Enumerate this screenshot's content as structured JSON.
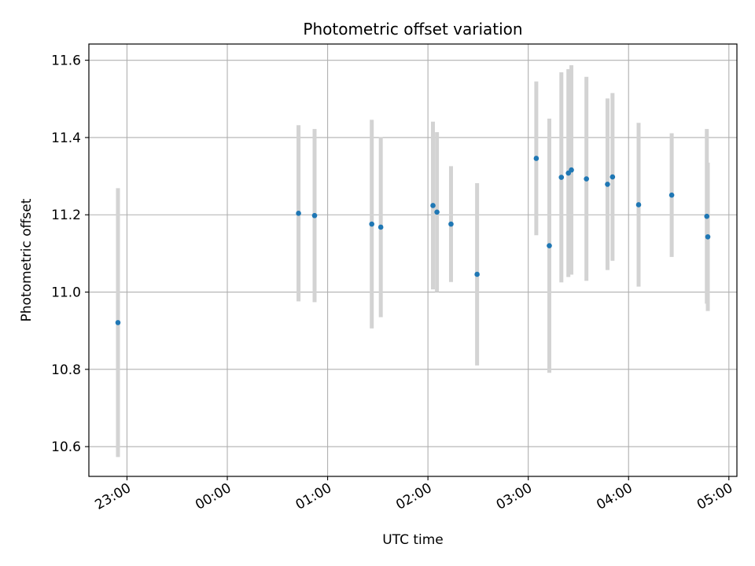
{
  "chart_data": {
    "type": "scatter",
    "title": "Photometric offset variation",
    "xlabel": "UTC time",
    "ylabel": "Photometric offset",
    "x_unit": "hours relative to 00:00 UTC",
    "xlim": [
      -1.38,
      5.08
    ],
    "ylim": [
      10.523,
      11.642
    ],
    "grid": true,
    "x_ticks": [
      {
        "value": -1,
        "label": "23:00"
      },
      {
        "value": 0,
        "label": "00:00"
      },
      {
        "value": 1,
        "label": "01:00"
      },
      {
        "value": 2,
        "label": "02:00"
      },
      {
        "value": 3,
        "label": "03:00"
      },
      {
        "value": 4,
        "label": "04:00"
      },
      {
        "value": 5,
        "label": "05:00"
      }
    ],
    "y_ticks": [
      {
        "value": 10.6,
        "label": "10.6"
      },
      {
        "value": 10.8,
        "label": "10.8"
      },
      {
        "value": 11.0,
        "label": "11.0"
      },
      {
        "value": 11.2,
        "label": "11.2"
      },
      {
        "value": 11.4,
        "label": "11.4"
      },
      {
        "value": 11.6,
        "label": "11.6"
      }
    ],
    "point_color": "#1f77b4",
    "errorbar_color": "#d3d3d3",
    "series": [
      {
        "name": "offset",
        "points": [
          {
            "x": -1.09,
            "y": 10.921,
            "err": 0.348
          },
          {
            "x": 0.71,
            "y": 11.204,
            "err": 0.228
          },
          {
            "x": 0.87,
            "y": 11.198,
            "err": 0.224
          },
          {
            "x": 1.44,
            "y": 11.176,
            "err": 0.27
          },
          {
            "x": 1.53,
            "y": 11.168,
            "err": 0.233
          },
          {
            "x": 2.05,
            "y": 11.224,
            "err": 0.217
          },
          {
            "x": 2.09,
            "y": 11.207,
            "err": 0.207
          },
          {
            "x": 2.23,
            "y": 11.176,
            "err": 0.15
          },
          {
            "x": 2.49,
            "y": 11.046,
            "err": 0.236
          },
          {
            "x": 3.08,
            "y": 11.346,
            "err": 0.199
          },
          {
            "x": 3.21,
            "y": 11.12,
            "err": 0.329
          },
          {
            "x": 3.33,
            "y": 11.297,
            "err": 0.272
          },
          {
            "x": 3.4,
            "y": 11.308,
            "err": 0.269
          },
          {
            "x": 3.43,
            "y": 11.316,
            "err": 0.271
          },
          {
            "x": 3.58,
            "y": 11.293,
            "err": 0.264
          },
          {
            "x": 3.79,
            "y": 11.279,
            "err": 0.222
          },
          {
            "x": 3.84,
            "y": 11.298,
            "err": 0.217
          },
          {
            "x": 4.1,
            "y": 11.226,
            "err": 0.212
          },
          {
            "x": 4.43,
            "y": 11.251,
            "err": 0.16
          },
          {
            "x": 4.78,
            "y": 11.196,
            "err": 0.226
          },
          {
            "x": 4.79,
            "y": 11.143,
            "err": 0.192
          }
        ]
      }
    ]
  }
}
